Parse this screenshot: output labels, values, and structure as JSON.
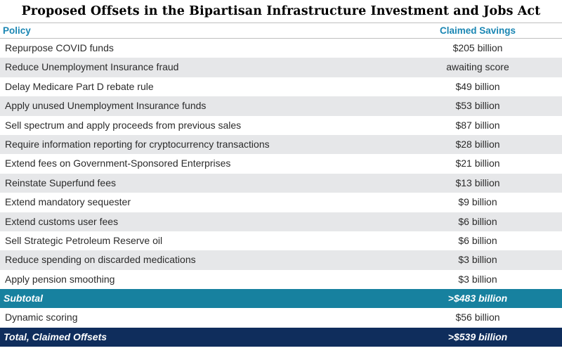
{
  "title": "Proposed Offsets in the Bipartisan Infrastructure Investment and Jobs Act",
  "header": {
    "policy": "Policy",
    "savings": "Claimed Savings"
  },
  "rows": [
    {
      "policy": "Repurpose COVID funds",
      "savings": "$205 billion"
    },
    {
      "policy": "Reduce Unemployment Insurance fraud",
      "savings": "awaiting score"
    },
    {
      "policy": "Delay Medicare Part D rebate rule",
      "savings": "$49 billion"
    },
    {
      "policy": "Apply unused Unemployment Insurance funds",
      "savings": "$53 billion"
    },
    {
      "policy": "Sell spectrum and apply proceeds from previous sales",
      "savings": "$87 billion"
    },
    {
      "policy": "Require information reporting for cryptocurrency transactions",
      "savings": "$28 billion"
    },
    {
      "policy": "Extend fees on Government-Sponsored Enterprises",
      "savings": "$21 billion"
    },
    {
      "policy": "Reinstate Superfund fees",
      "savings": "$13 billion"
    },
    {
      "policy": "Extend mandatory sequester",
      "savings": "$9 billion"
    },
    {
      "policy": "Extend customs user fees",
      "savings": "$6 billion"
    },
    {
      "policy": "Sell Strategic Petroleum Reserve oil",
      "savings": "$6 billion"
    },
    {
      "policy": "Reduce spending on discarded medications",
      "savings": "$3 billion"
    },
    {
      "policy": "Apply pension smoothing",
      "savings": "$3 billion"
    }
  ],
  "subtotal": {
    "policy": "Subtotal",
    "savings": ">$483 billion"
  },
  "dynamic": {
    "policy": "Dynamic scoring",
    "savings": "$56 billion"
  },
  "total": {
    "policy": "Total, Claimed Offsets",
    "savings": ">$539 billion"
  },
  "colors": {
    "header_text": "#1a86b3",
    "alt_row": "#e6e7e9",
    "subtotal_bg": "#17819f",
    "total_bg": "#0f2d5c"
  }
}
